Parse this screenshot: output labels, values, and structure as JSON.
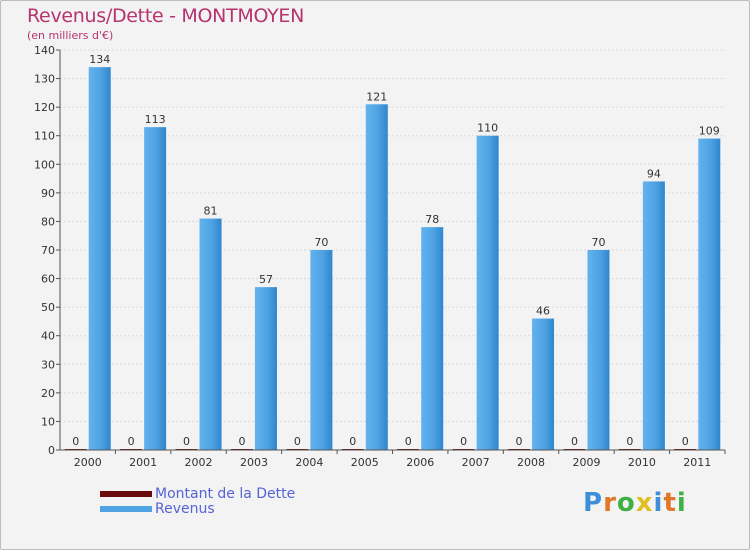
{
  "header": {
    "title": "Revenus/Dette - MONTMOYEN",
    "subtitle": "(en milliers d'€)"
  },
  "logo": {
    "letters": [
      "P",
      "r",
      "o",
      "x",
      "i",
      "t",
      "i"
    ]
  },
  "colors": {
    "title": "#b5336f",
    "dette": "#6b0c0c",
    "revenus": "#4fa3e3",
    "revenus_dark": "#2a7fc4",
    "legend_text": "#5662d6",
    "logo_letters": [
      "#3f8fd8",
      "#e0782a",
      "#3fb044",
      "#e0bf26",
      "#3f8fd8",
      "#e0782a",
      "#3fb044"
    ]
  },
  "chart_data": {
    "type": "bar",
    "title": "Revenus/Dette - MONTMOYEN",
    "ylabel": "(en milliers d'€)",
    "xlabel": "",
    "categories": [
      "2000",
      "2001",
      "2002",
      "2003",
      "2004",
      "2005",
      "2006",
      "2007",
      "2008",
      "2009",
      "2010",
      "2011"
    ],
    "series": [
      {
        "name": "Montant de la Dette",
        "values": [
          0,
          0,
          0,
          0,
          0,
          0,
          0,
          0,
          0,
          0,
          0,
          0
        ]
      },
      {
        "name": "Revenus",
        "values": [
          134,
          113,
          81,
          57,
          70,
          121,
          78,
          110,
          46,
          70,
          94,
          109
        ]
      }
    ],
    "ylim": [
      0,
      140
    ],
    "yticks": [
      0,
      10,
      20,
      30,
      40,
      50,
      60,
      70,
      80,
      90,
      100,
      110,
      120,
      130,
      140
    ],
    "grid": true,
    "legend": "bottom-left"
  }
}
